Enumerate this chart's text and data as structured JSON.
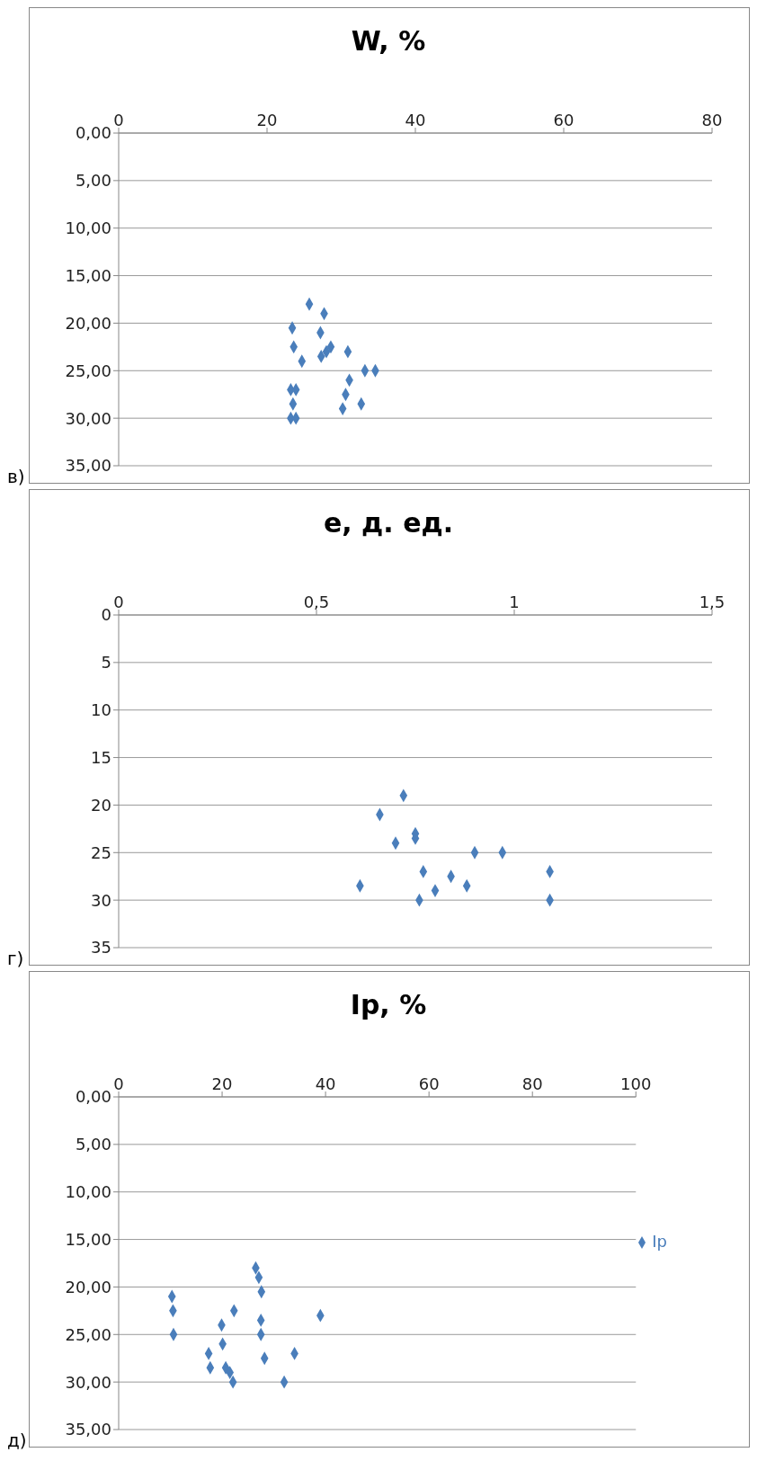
{
  "chart_data": [
    {
      "type": "scatter",
      "title": "W, %",
      "annotations": [
        "в)"
      ],
      "xlim": [
        0,
        80
      ],
      "xticks": [
        0,
        20,
        40,
        60,
        80
      ],
      "ylim": [
        35,
        0
      ],
      "yticks": [
        {
          "value": 0,
          "label": "0,00"
        },
        {
          "value": 5,
          "label": "5,00"
        },
        {
          "value": 10,
          "label": "10,00"
        },
        {
          "value": 15,
          "label": "15,00"
        },
        {
          "value": 20,
          "label": "20,00"
        },
        {
          "value": 25,
          "label": "25,00"
        },
        {
          "value": 30,
          "label": "30,00"
        },
        {
          "value": 35,
          "label": "35,00"
        }
      ],
      "grid": "y",
      "marker": "diamond",
      "legend": false,
      "series": [
        {
          "color": "#4a7ebb",
          "x": [
            25.7,
            27.7,
            23.4,
            27.2,
            23.6,
            28.6,
            28.0,
            30.9,
            27.3,
            24.7,
            33.2,
            34.6,
            31.1,
            23.2,
            23.9,
            30.6,
            23.5,
            32.7,
            30.2,
            23.2,
            23.9
          ],
          "values": [
            18,
            19,
            20.5,
            21,
            22.5,
            22.5,
            23,
            23,
            23.5,
            24,
            25,
            25,
            26,
            27,
            27,
            27.5,
            28.5,
            28.5,
            29,
            30,
            30
          ]
        }
      ]
    },
    {
      "type": "scatter",
      "title": "e, д. ед.",
      "annotations": [
        "г)"
      ],
      "xlim": [
        0,
        1.5
      ],
      "xticks": [
        0,
        {
          "value": 0.5,
          "label": "0,5"
        },
        1,
        {
          "value": 1.5,
          "label": "1,5"
        }
      ],
      "ylim": [
        35,
        0
      ],
      "yticks": [
        0,
        5,
        10,
        15,
        20,
        25,
        30,
        35
      ],
      "grid": "y",
      "marker": "diamond",
      "legend": false,
      "series": [
        {
          "color": "#4a7ebb",
          "x": [
            0.72,
            0.66,
            0.75,
            0.75,
            0.7,
            0.9,
            0.97,
            0.77,
            1.09,
            0.84,
            0.61,
            0.88,
            0.8,
            0.76,
            1.09
          ],
          "values": [
            19,
            21,
            23,
            23.5,
            24,
            25,
            25,
            27,
            27,
            27.5,
            28.5,
            28.5,
            29,
            30,
            30
          ]
        }
      ]
    },
    {
      "type": "scatter",
      "title": "Ip, %",
      "annotations": [
        "д)"
      ],
      "xlim": [
        0,
        100
      ],
      "xticks": [
        0,
        20,
        40,
        60,
        80,
        100
      ],
      "ylim": [
        35,
        0
      ],
      "yticks": [
        {
          "value": 0,
          "label": "0,00"
        },
        {
          "value": 5,
          "label": "5,00"
        },
        {
          "value": 10,
          "label": "10,00"
        },
        {
          "value": 15,
          "label": "15,00"
        },
        {
          "value": 20,
          "label": "20,00"
        },
        {
          "value": 25,
          "label": "25,00"
        },
        {
          "value": 30,
          "label": "30,00"
        },
        {
          "value": 35,
          "label": "35,00"
        }
      ],
      "grid": "y",
      "marker": "diamond",
      "legend": "right",
      "series": [
        {
          "name": "Ip",
          "color": "#4a7ebb",
          "x": [
            26.5,
            27.1,
            27.6,
            10.3,
            10.5,
            22.3,
            39.0,
            19.9,
            27.5,
            10.6,
            27.5,
            20.1,
            17.4,
            34.0,
            28.2,
            17.7,
            20.7,
            21.5,
            22.1,
            32.0
          ],
          "values": [
            18,
            19,
            20.5,
            21,
            22.5,
            22.5,
            23,
            24,
            23.5,
            25,
            25,
            26,
            27,
            27,
            27.5,
            28.5,
            28.5,
            29,
            30,
            30
          ]
        }
      ]
    }
  ]
}
